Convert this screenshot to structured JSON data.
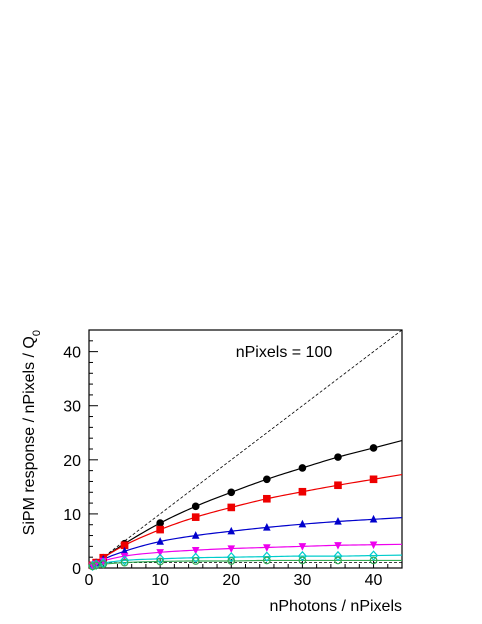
{
  "chart_data": {
    "type": "scatter",
    "title": "",
    "annotation": "nPixels = 100",
    "xlabel": "nPhotons / nPixels",
    "ylabel": "SiPM response / nPixels / Q",
    "ylabel_subscript": "0",
    "xlim": [
      0,
      44
    ],
    "ylim": [
      0,
      44
    ],
    "xticks": [
      0,
      10,
      20,
      30,
      40
    ],
    "yticks": [
      0,
      10,
      20,
      30,
      40
    ],
    "xtick_labels": [
      "0",
      "10",
      "20",
      "30",
      "40"
    ],
    "ytick_labels": [
      "0",
      "10",
      "20",
      "30",
      "40"
    ],
    "grid": false,
    "reference_lines": [
      {
        "style": "dashed",
        "x": [
          0,
          44
        ],
        "y": [
          0,
          44
        ]
      },
      {
        "style": "dashed",
        "x": [
          0,
          44
        ],
        "y": [
          1,
          1
        ]
      }
    ],
    "series": [
      {
        "marker": "circle",
        "color": "#000000",
        "x": [
          0.5,
          1,
          2,
          5,
          10,
          15,
          20,
          25,
          30,
          35,
          40
        ],
        "y": [
          0.5,
          1.0,
          1.9,
          4.5,
          8.3,
          11.4,
          14.0,
          16.4,
          18.5,
          20.5,
          22.2
        ]
      },
      {
        "marker": "square",
        "color": "#ee0000",
        "x": [
          0.5,
          1,
          2,
          5,
          10,
          15,
          20,
          25,
          30,
          35,
          40
        ],
        "y": [
          0.5,
          1.0,
          1.9,
          4.2,
          7.1,
          9.4,
          11.2,
          12.8,
          14.1,
          15.3,
          16.4
        ]
      },
      {
        "marker": "triangle-up",
        "color": "#0000cc",
        "x": [
          0.5,
          1,
          2,
          5,
          10,
          15,
          20,
          25,
          30,
          35,
          40
        ],
        "y": [
          0.5,
          0.9,
          1.6,
          3.1,
          4.9,
          6.0,
          6.8,
          7.5,
          8.1,
          8.6,
          9.0
        ]
      },
      {
        "marker": "triangle-down",
        "color": "#ee00ee",
        "x": [
          0.5,
          1,
          2,
          5,
          10,
          15,
          20,
          25,
          30,
          35,
          40
        ],
        "y": [
          0.4,
          0.8,
          1.3,
          2.2,
          2.9,
          3.3,
          3.6,
          3.8,
          4.0,
          4.2,
          4.3
        ]
      },
      {
        "marker": "diamond-open",
        "color": "#00cccc",
        "x": [
          0.5,
          1,
          2,
          5,
          10,
          15,
          20,
          25,
          30,
          35,
          40
        ],
        "y": [
          0.4,
          0.6,
          0.9,
          1.4,
          1.7,
          1.9,
          2.0,
          2.1,
          2.2,
          2.2,
          2.3
        ]
      },
      {
        "marker": "circle-open",
        "color": "#33aa55",
        "x": [
          0.5,
          1,
          2,
          5,
          10,
          15,
          20,
          25,
          30,
          35,
          40
        ],
        "y": [
          0.3,
          0.5,
          0.7,
          1.0,
          1.2,
          1.3,
          1.3,
          1.4,
          1.4,
          1.4,
          1.4
        ]
      }
    ]
  }
}
